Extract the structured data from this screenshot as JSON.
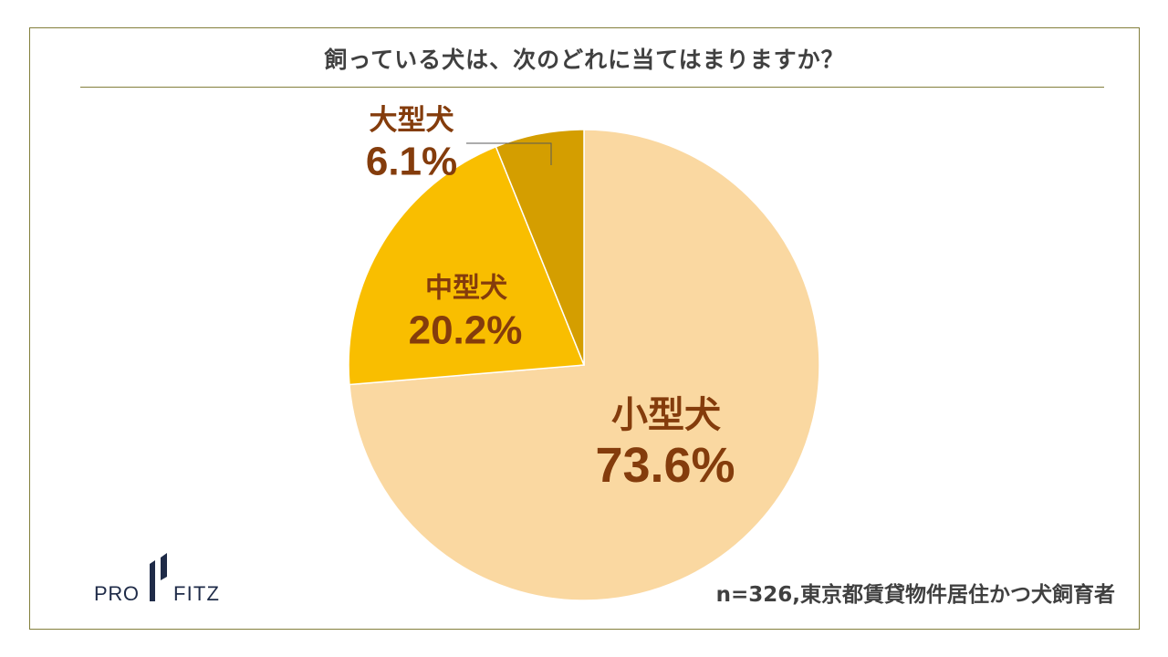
{
  "chart_data": {
    "type": "pie",
    "title": "飼っている犬は、次のどれに当てはまりますか？",
    "slices": [
      {
        "label": "小型犬",
        "value": 73.6,
        "value_label": "73.6%",
        "color": "#FAD8A1"
      },
      {
        "label": "中型犬",
        "value": 20.2,
        "value_label": "20.2%",
        "color": "#F9BE00"
      },
      {
        "label": "大型犬",
        "value": 6.1,
        "value_label": "6.1%",
        "color": "#D49E00"
      }
    ],
    "note": "n=326,東京都賃貸物件居住かつ犬飼育者"
  },
  "logo": {
    "left": "PRO",
    "right": "FITZ"
  },
  "colors": {
    "frame": "#837F3C",
    "label": "#843C0C",
    "text": "#404040",
    "logo": "#1F2B48",
    "leader": "#595959"
  }
}
